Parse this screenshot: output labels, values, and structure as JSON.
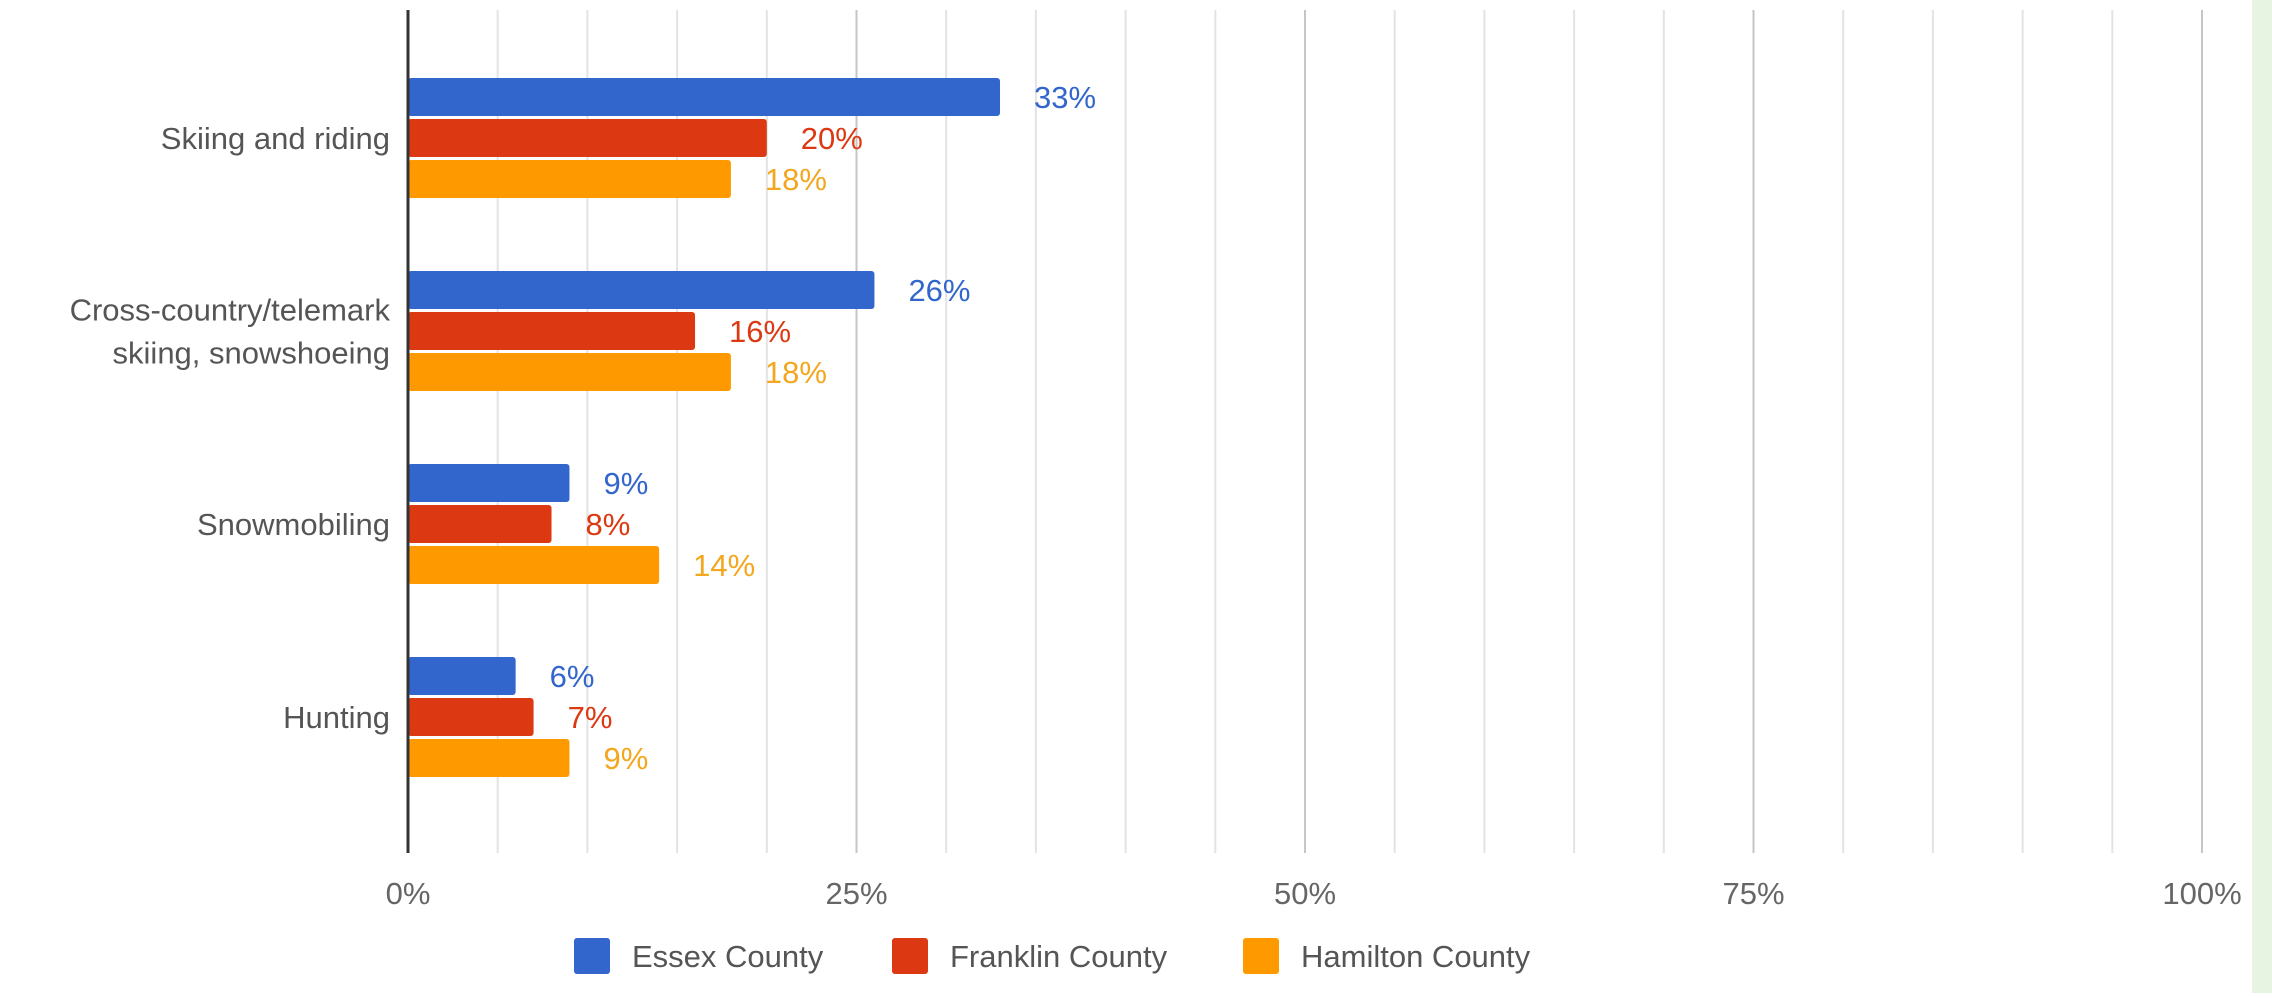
{
  "chart_data": {
    "type": "bar",
    "orientation": "horizontal",
    "categories": [
      [
        "Skiing and riding"
      ],
      [
        "Cross-country/telemark",
        "skiing, snowshoeing"
      ],
      [
        "Snowmobiling"
      ],
      [
        "Hunting"
      ]
    ],
    "series": [
      {
        "name": "Essex County",
        "color": "#3366cc",
        "values": [
          33,
          26,
          9,
          6
        ]
      },
      {
        "name": "Franklin County",
        "color": "#dc3912",
        "values": [
          20,
          16,
          8,
          7
        ]
      },
      {
        "name": "Hamilton County",
        "color": "#ff9900",
        "values": [
          18,
          18,
          14,
          9
        ]
      }
    ],
    "value_label_colors": [
      "#3366cc",
      "#dc3912",
      "#f2a71e"
    ],
    "value_suffix": "%",
    "xlim": [
      0,
      100
    ],
    "x_ticks": [
      0,
      25,
      50,
      75,
      100
    ],
    "x_tick_labels": [
      "0%",
      "25%",
      "50%",
      "75%",
      "100%"
    ],
    "grid": true,
    "legend_position": "bottom",
    "title": "",
    "xlabel": "",
    "ylabel": ""
  }
}
